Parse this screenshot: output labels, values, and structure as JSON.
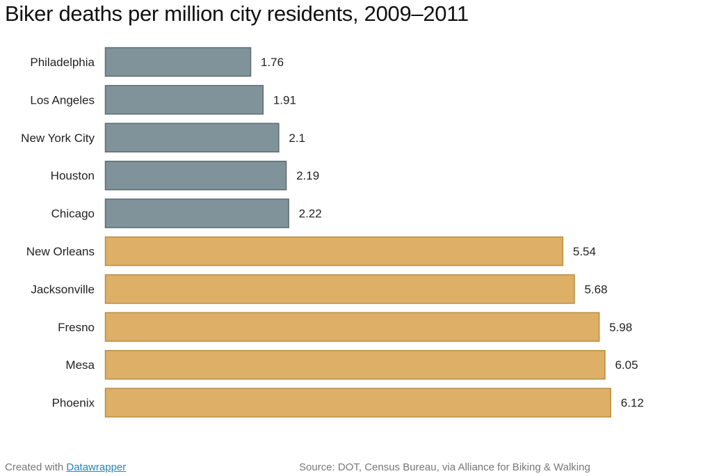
{
  "chart_data": {
    "type": "bar",
    "orientation": "horizontal",
    "title": "Biker deaths per million city residents, 2009–2011",
    "xlabel": "",
    "ylabel": "",
    "xlim": [
      0,
      6.12
    ],
    "grid": false,
    "categories": [
      "Philadelphia",
      "Los Angeles",
      "New York City",
      "Houston",
      "Chicago",
      "New Orleans",
      "Jacksonville",
      "Fresno",
      "Mesa",
      "Phoenix"
    ],
    "values": [
      1.76,
      1.91,
      2.1,
      2.19,
      2.22,
      5.54,
      5.68,
      5.98,
      6.05,
      6.12
    ],
    "value_labels": [
      "1.76",
      "1.91",
      "2.1",
      "2.19",
      "2.22",
      "5.54",
      "5.68",
      "5.98",
      "6.05",
      "6.12"
    ],
    "groups": [
      "low",
      "low",
      "low",
      "low",
      "low",
      "high",
      "high",
      "high",
      "high",
      "high"
    ],
    "colors": {
      "low": {
        "fill": "#81939a",
        "stroke": "#5c6c73"
      },
      "high": {
        "fill": "#deaf66",
        "stroke": "#b88d43"
      }
    }
  },
  "footer": {
    "created_with": "Created with ",
    "link_label": "Datawrapper",
    "source": "Source: DOT, Census Bureau, via Alliance for Biking & Walking"
  }
}
